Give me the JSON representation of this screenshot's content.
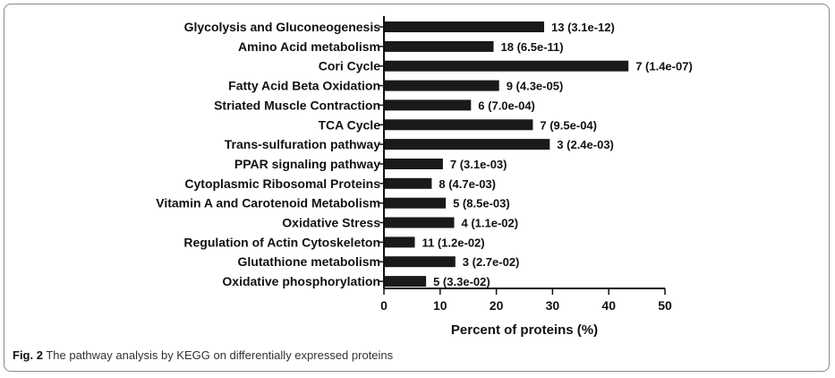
{
  "caption": {
    "label": "Fig. 2",
    "text": "The pathway analysis by KEGG on differentially expressed proteins"
  },
  "chart_data": {
    "type": "bar",
    "orientation": "horizontal",
    "xlabel": "Percent of proteins (%)",
    "xlim": [
      0,
      50
    ],
    "xticks": [
      0,
      10,
      20,
      30,
      40,
      50
    ],
    "bar_color": "#1a1a1a",
    "categories": [
      "Glycolysis and Gluconeogenesis",
      "Amino Acid metabolism",
      "Cori Cycle",
      "Fatty Acid Beta Oxidation",
      "Striated Muscle Contraction",
      "TCA Cycle",
      "Trans-sulfuration pathway",
      "PPAR signaling pathway",
      "Cytoplasmic Ribosomal Proteins",
      "Vitamin A and Carotenoid Metabolism",
      "Oxidative Stress",
      "Regulation of Actin Cytoskeleton",
      "Glutathione metabolism",
      "Oxidative phosphorylation"
    ],
    "values": [
      28.5,
      19.5,
      43.5,
      20.5,
      15.5,
      26.5,
      29.5,
      10.5,
      8.5,
      11.0,
      12.5,
      5.5,
      12.7,
      7.5
    ],
    "data_labels": [
      "13 (3.1e-12)",
      "18 (6.5e-11)",
      "7 (1.4e-07)",
      "9 (4.3e-05)",
      "6 (7.0e-04)",
      "7 (9.5e-04)",
      "3 (2.4e-03)",
      "7 (3.1e-03)",
      "8 (4.7e-03)",
      "5 (8.5e-03)",
      "4 (1.1e-02)",
      "11 (1.2e-02)",
      "3 (2.7e-02)",
      "5 (3.3e-02)"
    ]
  }
}
